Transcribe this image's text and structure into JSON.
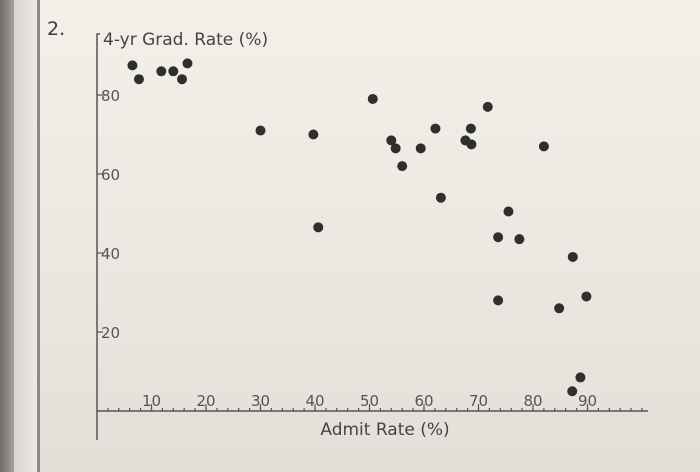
{
  "question_number": "2.",
  "chart_data": {
    "type": "scatter",
    "xlabel": "Admit Rate (%)",
    "ylabel": "4-yr Grad. Rate (%)",
    "xlim": [
      0,
      100
    ],
    "ylim": [
      0,
      95
    ],
    "xticks": [
      10,
      20,
      30,
      40,
      50,
      60,
      70,
      80,
      90
    ],
    "yticks": [
      20,
      40,
      60,
      80
    ],
    "grid": false,
    "points": [
      {
        "x": 6.5,
        "y": 87.5
      },
      {
        "x": 7.7,
        "y": 84
      },
      {
        "x": 11.8,
        "y": 86
      },
      {
        "x": 14,
        "y": 86
      },
      {
        "x": 15.6,
        "y": 84
      },
      {
        "x": 16.6,
        "y": 88
      },
      {
        "x": 30,
        "y": 71
      },
      {
        "x": 39.7,
        "y": 70
      },
      {
        "x": 40.6,
        "y": 46.5
      },
      {
        "x": 50.6,
        "y": 79
      },
      {
        "x": 54,
        "y": 68.5
      },
      {
        "x": 54.8,
        "y": 66.5
      },
      {
        "x": 56,
        "y": 62
      },
      {
        "x": 59.4,
        "y": 66.5
      },
      {
        "x": 62.1,
        "y": 71.5
      },
      {
        "x": 63.1,
        "y": 54
      },
      {
        "x": 67.6,
        "y": 68.5
      },
      {
        "x": 68.6,
        "y": 71.5
      },
      {
        "x": 68.7,
        "y": 67.5
      },
      {
        "x": 71.7,
        "y": 77
      },
      {
        "x": 73.6,
        "y": 44
      },
      {
        "x": 73.6,
        "y": 28
      },
      {
        "x": 75.5,
        "y": 50.5
      },
      {
        "x": 77.5,
        "y": 43.5
      },
      {
        "x": 82,
        "y": 67
      },
      {
        "x": 84.8,
        "y": 26
      },
      {
        "x": 87.2,
        "y": 5
      },
      {
        "x": 87.3,
        "y": 39
      },
      {
        "x": 88.7,
        "y": 8.5
      },
      {
        "x": 89.8,
        "y": 29
      }
    ]
  }
}
